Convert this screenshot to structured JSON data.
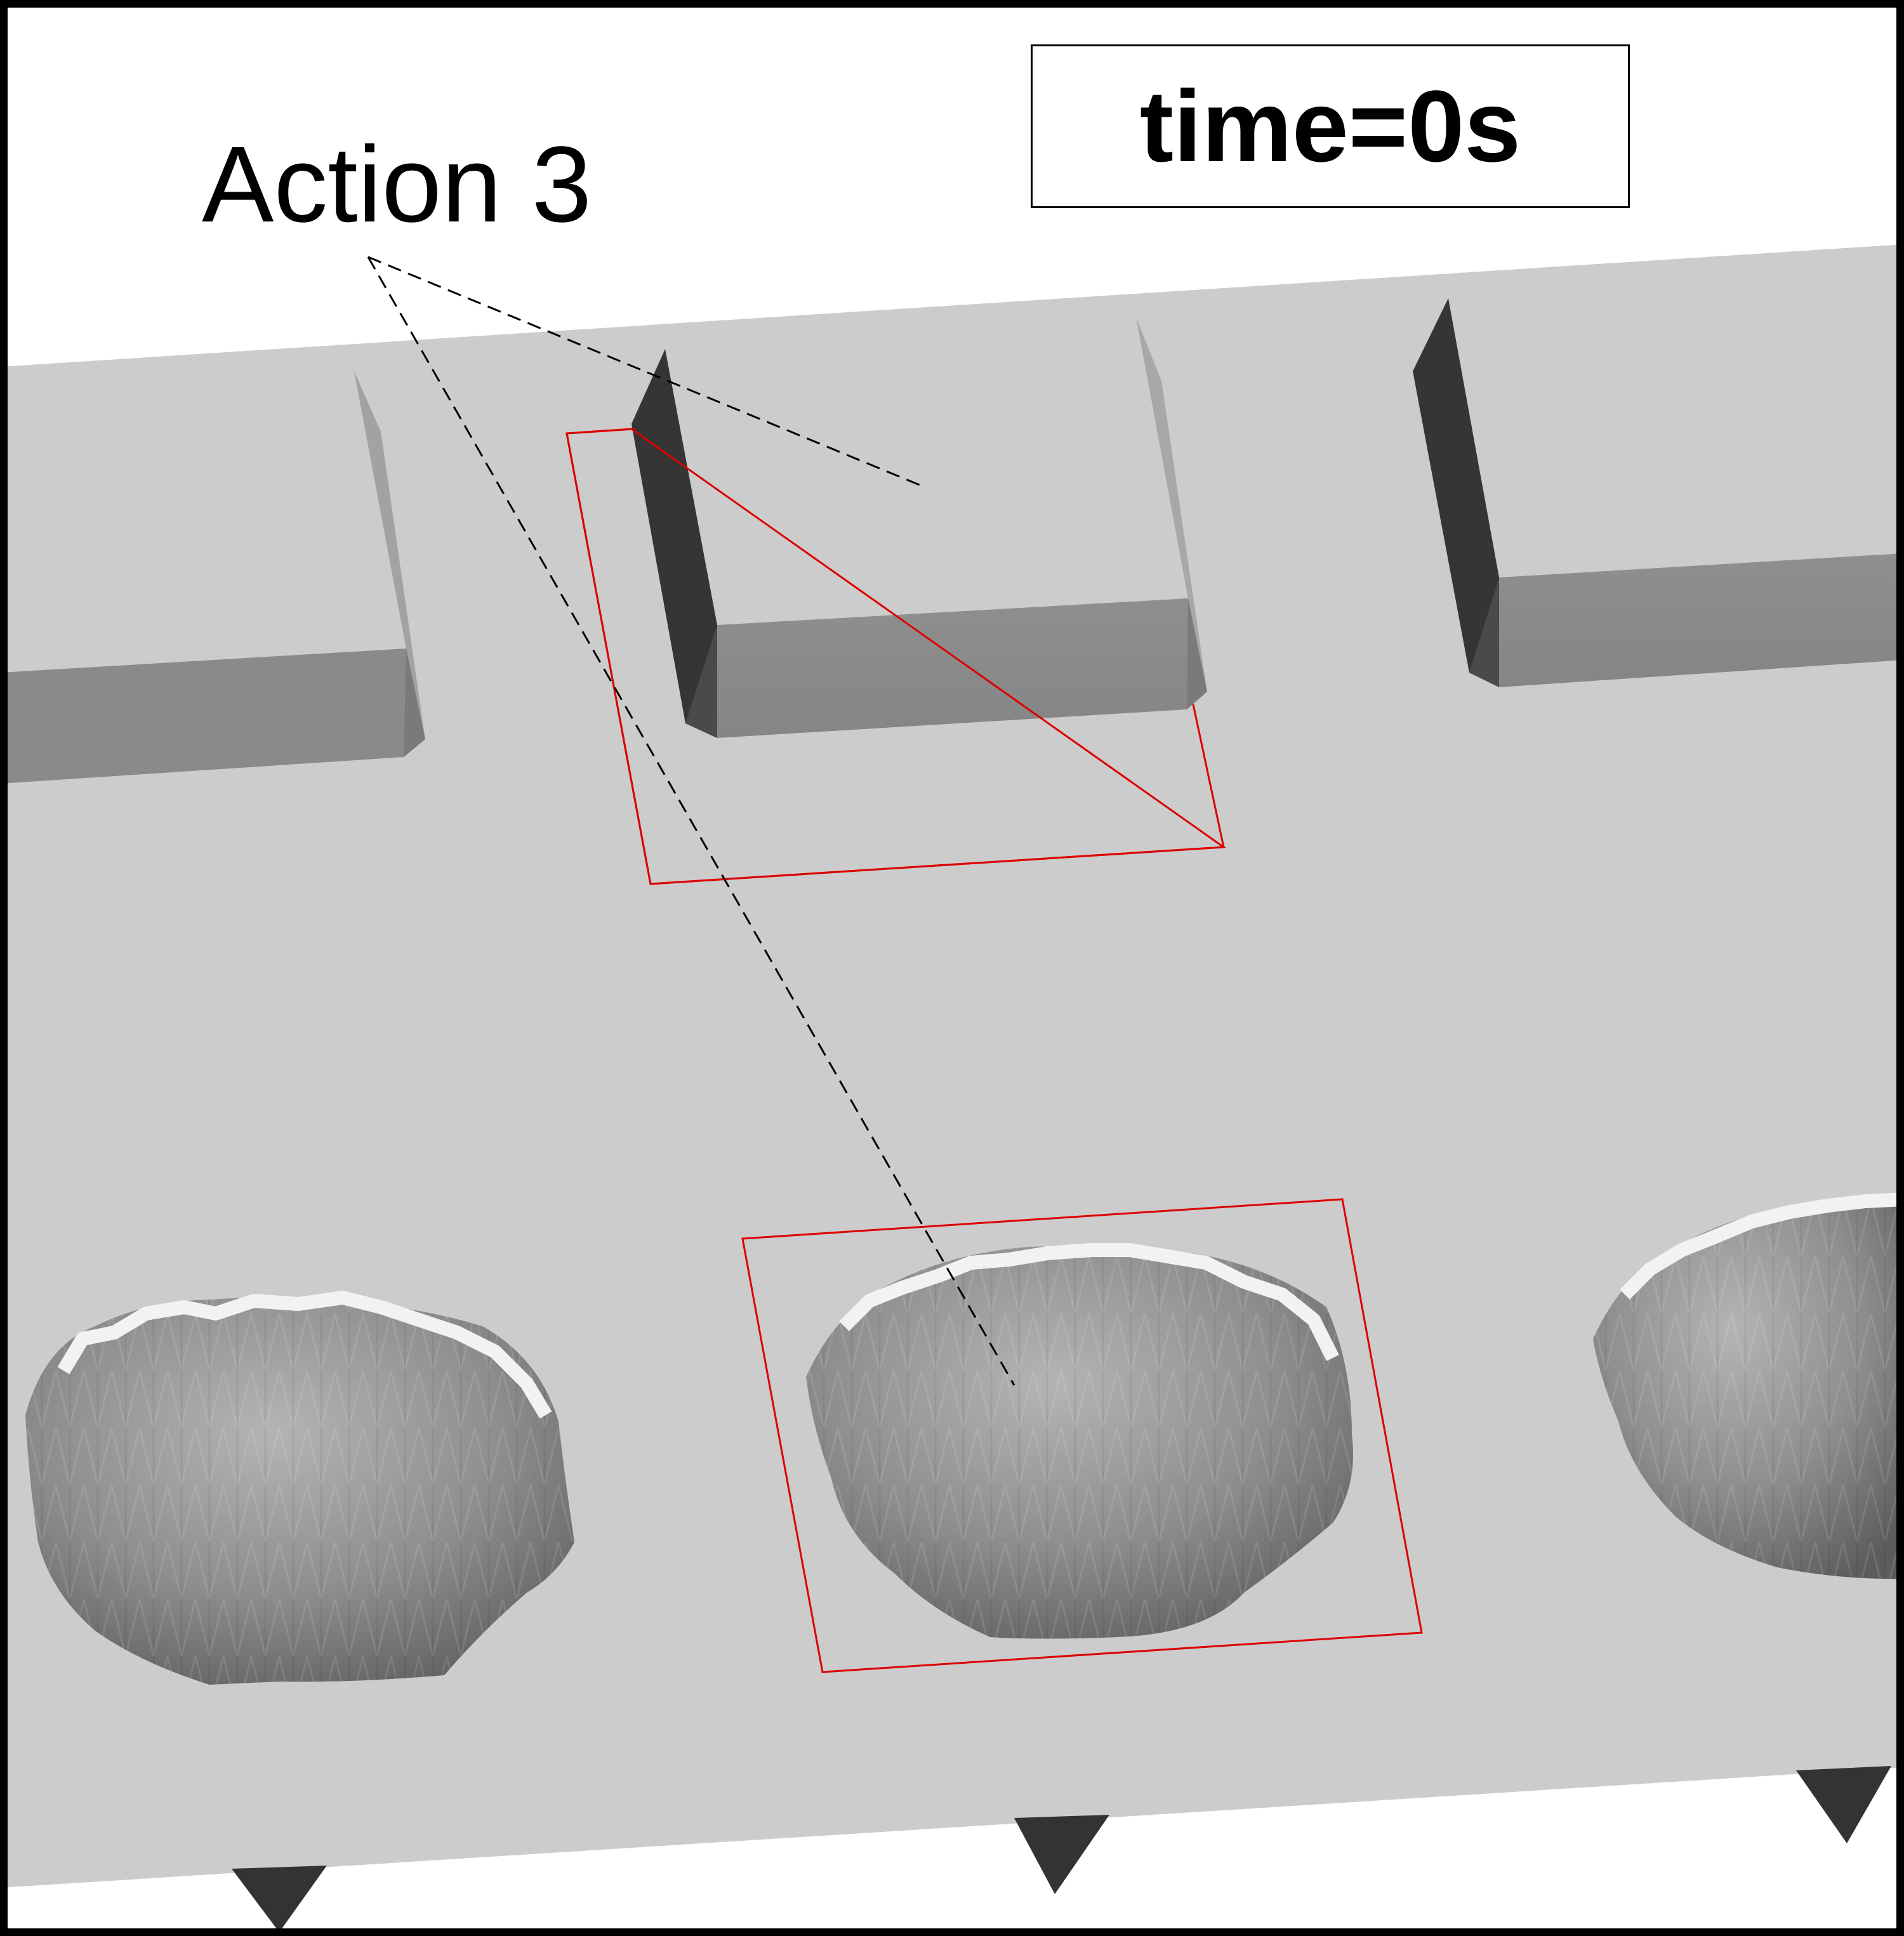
{
  "timer": {
    "label": "time",
    "equals": "=",
    "value": "0",
    "unit": "s"
  },
  "annotation": {
    "label": "Action 3"
  },
  "colors": {
    "background": "#ffffff",
    "frame": "#000000",
    "plate_top": "#cccccc",
    "plate_front": "#8a8a8a",
    "block_dark_face": "#333333",
    "highlight_box": "#dd0000",
    "leader_line": "#000000",
    "spike": "#333333"
  },
  "scene": {
    "raised_blocks": 3,
    "dimples": 3,
    "spikes": 3,
    "highlighted_regions": 2
  }
}
